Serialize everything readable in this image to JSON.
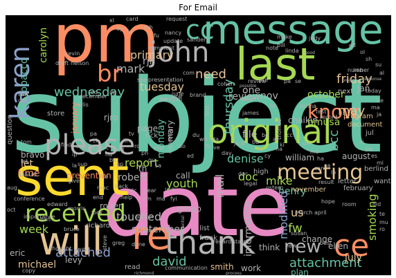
{
  "figure": {
    "title": "For Email",
    "background": "#000000"
  },
  "palette": {
    "green": "#66c2a5",
    "orange": "#fc8d62",
    "blue": "#8da0cb",
    "pink": "#e78ac3",
    "lime": "#a6d854",
    "yellow": "#ffd92f",
    "tan": "#e5c494",
    "gray": "#b3b3b3"
  },
  "cloud": {
    "words": [
      "subject",
      "date",
      "pm",
      "message",
      "sent",
      "last",
      "original",
      "will",
      "thank",
      "re",
      "please",
      "john",
      "received",
      "meeting",
      "know",
      "cc",
      "ce",
      "karen",
      "br",
      "new",
      "attachment",
      "attached",
      "david",
      "wednesday",
      "mark",
      "need",
      "primary",
      "friday",
      "tuesday",
      "thursday",
      "mike",
      "henry",
      "modified",
      "smoking",
      "review",
      "denise",
      "report",
      "tobacco",
      "carolyn",
      "rjr",
      "fw",
      "bcc",
      "doc",
      "october",
      "mail",
      "monday",
      "information",
      "touched",
      "september",
      "robert",
      "youth",
      "week",
      "michael",
      "us",
      "one",
      "may",
      "pmusa",
      "time",
      "let",
      "file",
      "nov",
      "july",
      "jan",
      "call",
      "group",
      "work",
      "plan",
      "change",
      "ellen",
      "roger",
      "smith",
      "read",
      "bravo",
      "issue",
      "rjro",
      "page",
      "prevention",
      "mary",
      "january",
      "william",
      "august",
      "eric",
      "levy",
      "two",
      "chaikin",
      "high",
      "think",
      "list",
      "frank",
      "program",
      "document",
      "next",
      "today",
      "jul",
      "fax",
      "store",
      "question",
      "november",
      "february",
      "letter",
      "berlind",
      "want",
      "richard",
      "give",
      "help",
      "back",
      "year",
      "review",
      "done",
      "copy",
      "draft",
      "request",
      "ken",
      "nancy",
      "linda",
      "bill",
      "note",
      "kevin",
      "sanders",
      "update",
      "presentation",
      "cohen",
      "daragan",
      "june",
      "brand",
      "march",
      "april",
      "conference",
      "edward",
      "morris",
      "look",
      "steve",
      "greg",
      "regard",
      "state",
      "susan",
      "best",
      "hi",
      "ostern",
      "legal",
      "result",
      "room",
      "old",
      "number",
      "response",
      "project",
      "make",
      "judy",
      "good",
      "cigarette",
      "ysp",
      "joe",
      "james",
      "thomas",
      "jack",
      "oct",
      "aug",
      "first",
      "find",
      "market",
      "end",
      "tom",
      "let",
      "day",
      "hope",
      "possible",
      "process",
      "communication",
      "brendan",
      "richmond",
      "confidential",
      "importance",
      "bruce",
      "nelson",
      "card",
      "comment",
      "ed",
      "doc",
      "dec",
      "mac",
      "son",
      "dc",
      "use",
      "pm",
      "ma",
      "fyi",
      "xl",
      "ey",
      "lo",
      "mh",
      "fu",
      "han",
      "sup",
      "tod",
      "dp",
      "gp",
      "sa",
      "ve",
      "bo",
      "na",
      "can",
      "send",
      "la",
      "re",
      "do",
      "ed",
      "pre",
      "pa",
      "se",
      "donna",
      "test",
      "record",
      "rick",
      "june",
      "december",
      "ellis",
      "west",
      "see",
      "com",
      "cc",
      "sm",
      "thought",
      "new",
      "ip",
      "pa",
      "ch",
      "lac",
      "nu",
      "ba",
      "sg",
      "lin",
      "tv",
      "ro",
      "ph",
      "gu",
      "du",
      "th",
      "wh",
      "fo",
      "da",
      "bo",
      "le",
      "cy",
      "ar",
      "ki",
      "mo",
      "ha",
      "ca",
      "lo",
      "ri",
      "pe",
      "es",
      "mi",
      "ne",
      "ma",
      "ja",
      "ol",
      "sh",
      "su",
      "al",
      "te",
      "mu",
      "ro"
    ]
  }
}
